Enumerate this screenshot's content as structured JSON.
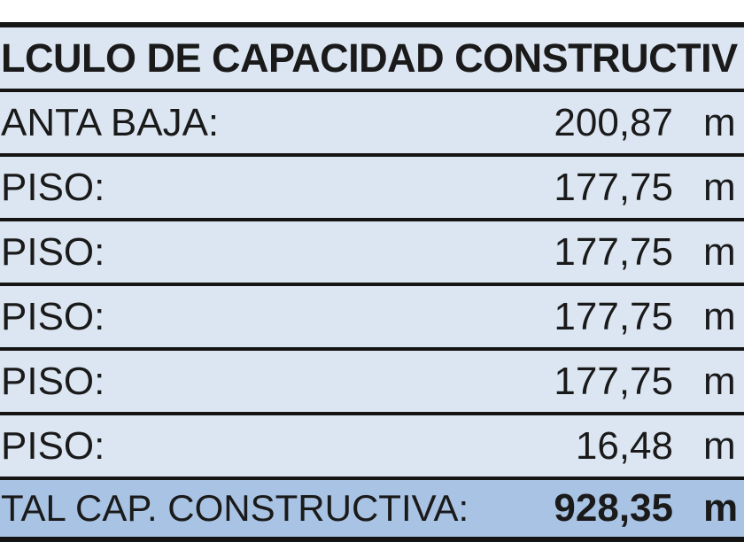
{
  "table": {
    "title": "LCULO DE CAPACIDAD CONSTRUCTIV",
    "rows": [
      {
        "label": "ANTA BAJA:",
        "value": "200,87",
        "unit": "m"
      },
      {
        "label": "PISO:",
        "value": "177,75",
        "unit": "m"
      },
      {
        "label": "PISO:",
        "value": "177,75",
        "unit": "m"
      },
      {
        "label": "PISO:",
        "value": "177,75",
        "unit": "m"
      },
      {
        "label": "PISO:",
        "value": "177,75",
        "unit": "m"
      },
      {
        "label": "PISO:",
        "value": "16,48",
        "unit": "m"
      }
    ],
    "total": {
      "label": "TAL CAP. CONSTRUCTIVA:",
      "value": "928,35",
      "unit": "m"
    }
  },
  "colors": {
    "row_bg": "#dce6f2",
    "total_bg": "#a9c3e4",
    "border": "#141414",
    "text": "#1a1a1a",
    "page_bg": "#ffffff"
  }
}
